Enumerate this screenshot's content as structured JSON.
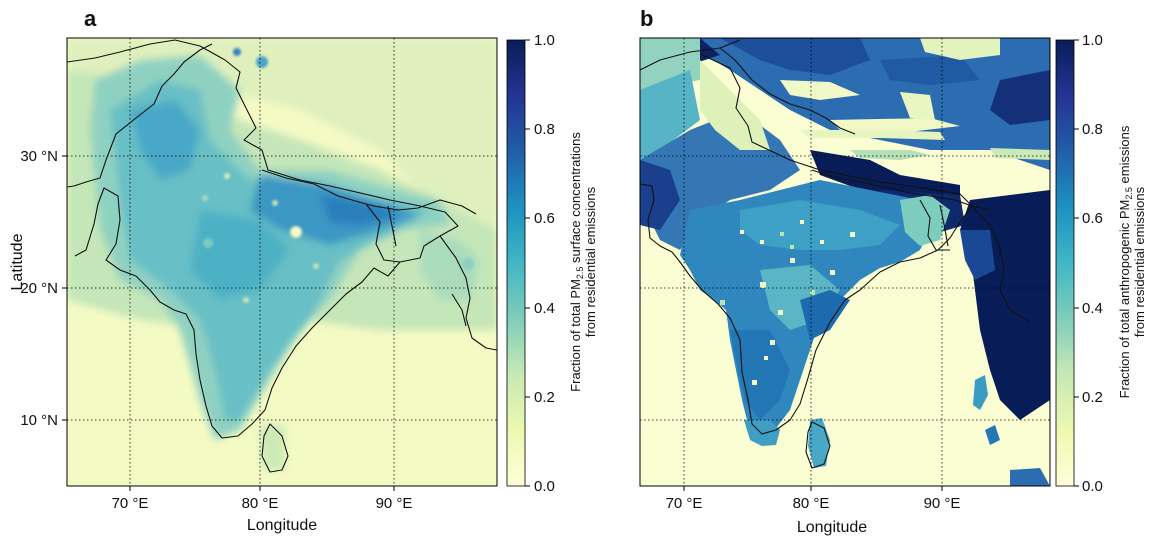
{
  "panels": [
    {
      "letter": "a",
      "xlabel": "Longitude",
      "ylabel": "Latitude",
      "x_ticks": [
        "70 °E",
        "80 °E",
        "90 °E"
      ],
      "y_ticks": [
        "30 °N",
        "20 °N",
        "10 °N"
      ],
      "colorbar": {
        "label_pre": "Fraction of total PM",
        "label_sub": "2.5",
        "label_post": " surface concentrations",
        "label_line2": "from residential emissions",
        "ticks": [
          "1.0",
          "0.8",
          "0.6",
          "0.4",
          "0.2",
          "0.0"
        ]
      }
    },
    {
      "letter": "b",
      "xlabel": "Longitude",
      "ylabel": "",
      "x_ticks": [
        "70 °E",
        "80 °E",
        "90 °E"
      ],
      "y_ticks": [],
      "colorbar": {
        "label_pre": "Fraction of total anthropogenic PM",
        "label_sub": "2.5",
        "label_post": " emissions",
        "label_line2": "from residential emissions",
        "ticks": [
          "1.0",
          "0.8",
          "0.6",
          "0.4",
          "0.2",
          "0.0"
        ]
      }
    }
  ],
  "map": {
    "lon_range": [
      67,
      98
    ],
    "lat_range": [
      5,
      38
    ],
    "grid_lons": [
      70,
      80,
      90
    ],
    "grid_lats": [
      30,
      20,
      10
    ],
    "colormap": "YlGnBu",
    "colorbar_range": [
      0.0,
      1.0
    ]
  }
}
